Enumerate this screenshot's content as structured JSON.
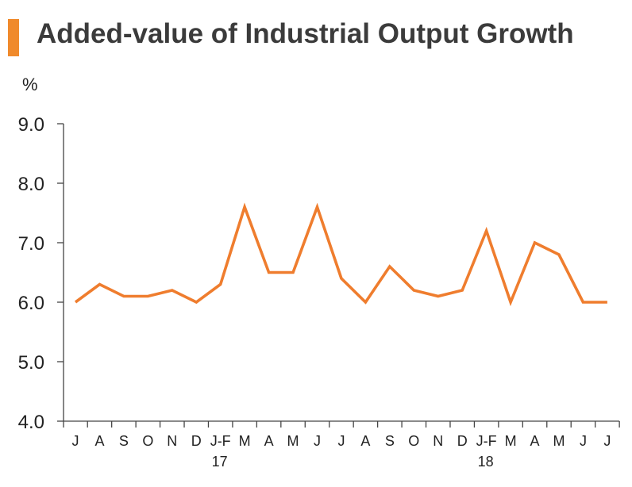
{
  "title": "Added-value of Industrial Output Growth",
  "colors": {
    "accent": "#f08a2c",
    "line": "#ef7d2e",
    "axis": "#444444"
  },
  "chart_data": {
    "type": "line",
    "title": "Added-value of Industrial Output Growth",
    "ylabel": "%",
    "xlabel": "",
    "ylim": [
      4.0,
      9.0
    ],
    "yticks": [
      "9.0",
      "8.0",
      "7.0",
      "6.0",
      "5.0",
      "4.0"
    ],
    "ytick_values": [
      9.0,
      8.0,
      7.0,
      6.0,
      5.0,
      4.0
    ],
    "categories": [
      "J",
      "A",
      "S",
      "O",
      "N",
      "D",
      "J-F",
      "M",
      "A",
      "M",
      "J",
      "J",
      "A",
      "S",
      "O",
      "N",
      "D",
      "J-F",
      "M",
      "A",
      "M",
      "J",
      "J"
    ],
    "year_labels": [
      {
        "after_category_index": 6,
        "label": "17"
      },
      {
        "after_category_index": 17,
        "label": "18"
      }
    ],
    "series": [
      {
        "values": [
          6.0,
          6.3,
          6.1,
          6.1,
          6.2,
          6.0,
          6.3,
          7.6,
          6.5,
          6.5,
          7.6,
          6.4,
          6.0,
          6.6,
          6.2,
          6.1,
          6.2,
          7.2,
          6.0,
          7.0,
          6.8,
          6.0,
          6.0
        ]
      }
    ],
    "grid": false,
    "legend": "none"
  }
}
